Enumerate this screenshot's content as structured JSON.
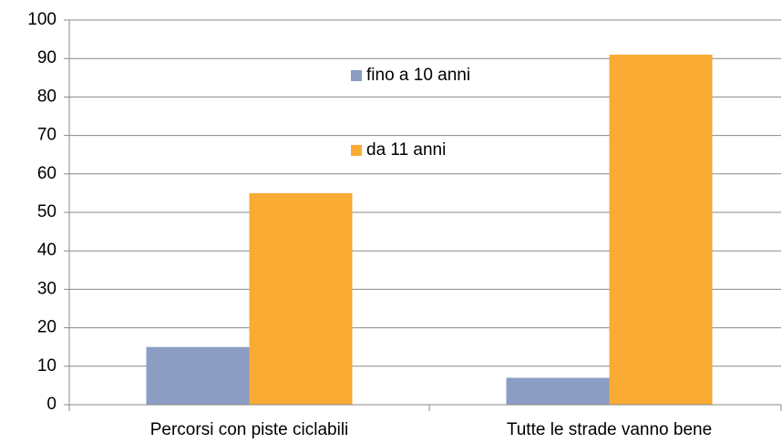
{
  "chart_data": {
    "type": "bar",
    "categories": [
      "Percorsi con piste ciclabili",
      "Tutte le strade vanno bene"
    ],
    "series": [
      {
        "name": "fino a 10 anni",
        "color": "#8b9dc3",
        "values": [
          15,
          7
        ]
      },
      {
        "name": "da 11 anni",
        "color": "#f9ab34",
        "values": [
          55,
          91
        ]
      }
    ],
    "ylim": [
      0,
      100
    ],
    "yticks": [
      0,
      10,
      20,
      30,
      40,
      50,
      60,
      70,
      80,
      90,
      100
    ],
    "grid": true
  }
}
